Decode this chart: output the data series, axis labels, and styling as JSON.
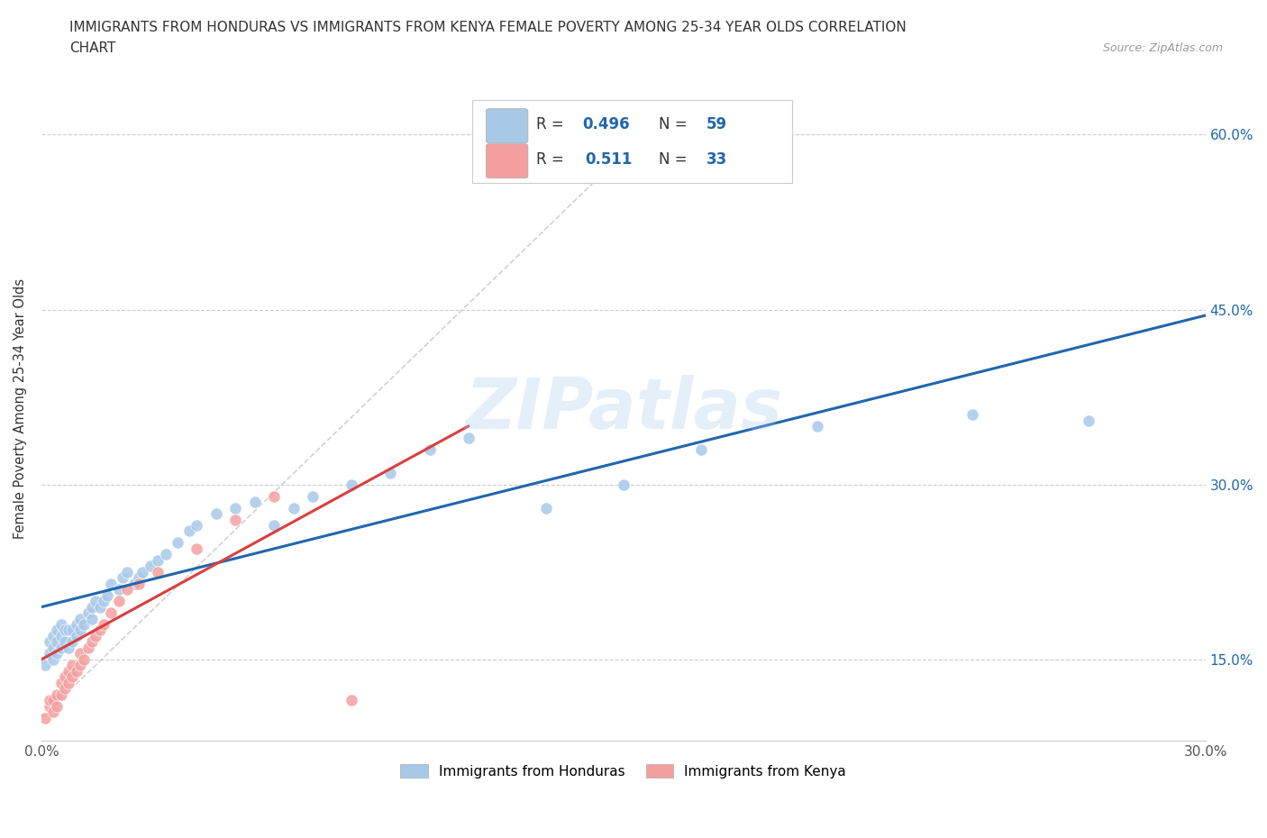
{
  "title_line1": "IMMIGRANTS FROM HONDURAS VS IMMIGRANTS FROM KENYA FEMALE POVERTY AMONG 25-34 YEAR OLDS CORRELATION",
  "title_line2": "CHART",
  "source": "Source: ZipAtlas.com",
  "ylabel": "Female Poverty Among 25-34 Year Olds",
  "xlim": [
    0,
    0.3
  ],
  "ylim": [
    0.08,
    0.65
  ],
  "xticks": [
    0.0,
    0.05,
    0.1,
    0.15,
    0.2,
    0.25,
    0.3
  ],
  "xticklabels": [
    "0.0%",
    "",
    "",
    "",
    "",
    "",
    "30.0%"
  ],
  "ytick_positions": [
    0.15,
    0.3,
    0.45,
    0.6
  ],
  "ytick_labels": [
    "15.0%",
    "30.0%",
    "45.0%",
    "60.0%"
  ],
  "honduras_R": 0.496,
  "honduras_N": 59,
  "kenya_R": 0.511,
  "kenya_N": 33,
  "color_honduras": "#a8c8e8",
  "color_kenya": "#f4a0a0",
  "color_honduras_line": "#2166ac",
  "color_kenya_line": "#d94040",
  "watermark_text": "ZIPatlas",
  "honduras_x": [
    0.001,
    0.002,
    0.002,
    0.003,
    0.003,
    0.003,
    0.004,
    0.004,
    0.004,
    0.005,
    0.005,
    0.005,
    0.006,
    0.006,
    0.007,
    0.007,
    0.008,
    0.008,
    0.009,
    0.009,
    0.01,
    0.01,
    0.011,
    0.012,
    0.013,
    0.013,
    0.014,
    0.015,
    0.016,
    0.017,
    0.018,
    0.02,
    0.021,
    0.022,
    0.024,
    0.025,
    0.026,
    0.028,
    0.03,
    0.032,
    0.035,
    0.038,
    0.04,
    0.045,
    0.05,
    0.055,
    0.06,
    0.065,
    0.07,
    0.08,
    0.09,
    0.1,
    0.11,
    0.13,
    0.15,
    0.17,
    0.2,
    0.24,
    0.27
  ],
  "honduras_y": [
    0.145,
    0.155,
    0.165,
    0.15,
    0.16,
    0.17,
    0.155,
    0.165,
    0.175,
    0.16,
    0.17,
    0.18,
    0.165,
    0.175,
    0.16,
    0.175,
    0.165,
    0.175,
    0.17,
    0.18,
    0.175,
    0.185,
    0.18,
    0.19,
    0.185,
    0.195,
    0.2,
    0.195,
    0.2,
    0.205,
    0.215,
    0.21,
    0.22,
    0.225,
    0.215,
    0.22,
    0.225,
    0.23,
    0.235,
    0.24,
    0.25,
    0.26,
    0.265,
    0.275,
    0.28,
    0.285,
    0.265,
    0.28,
    0.29,
    0.3,
    0.31,
    0.33,
    0.34,
    0.28,
    0.3,
    0.33,
    0.35,
    0.36,
    0.355
  ],
  "kenya_x": [
    0.001,
    0.002,
    0.002,
    0.003,
    0.003,
    0.004,
    0.004,
    0.005,
    0.005,
    0.006,
    0.006,
    0.007,
    0.007,
    0.008,
    0.008,
    0.009,
    0.01,
    0.01,
    0.011,
    0.012,
    0.013,
    0.014,
    0.015,
    0.016,
    0.018,
    0.02,
    0.022,
    0.025,
    0.03,
    0.04,
    0.05,
    0.06,
    0.08
  ],
  "kenya_y": [
    0.1,
    0.11,
    0.115,
    0.105,
    0.115,
    0.11,
    0.12,
    0.12,
    0.13,
    0.125,
    0.135,
    0.13,
    0.14,
    0.135,
    0.145,
    0.14,
    0.145,
    0.155,
    0.15,
    0.16,
    0.165,
    0.17,
    0.175,
    0.18,
    0.19,
    0.2,
    0.21,
    0.215,
    0.225,
    0.245,
    0.27,
    0.29,
    0.115
  ],
  "honduras_line_x": [
    0.0,
    0.3
  ],
  "honduras_line_y": [
    0.195,
    0.445
  ],
  "kenya_line_x": [
    0.0,
    0.11
  ],
  "kenya_line_y": [
    0.15,
    0.35
  ],
  "gray_line_x": [
    0.0,
    0.155
  ],
  "gray_line_y": [
    0.1,
    0.6
  ]
}
